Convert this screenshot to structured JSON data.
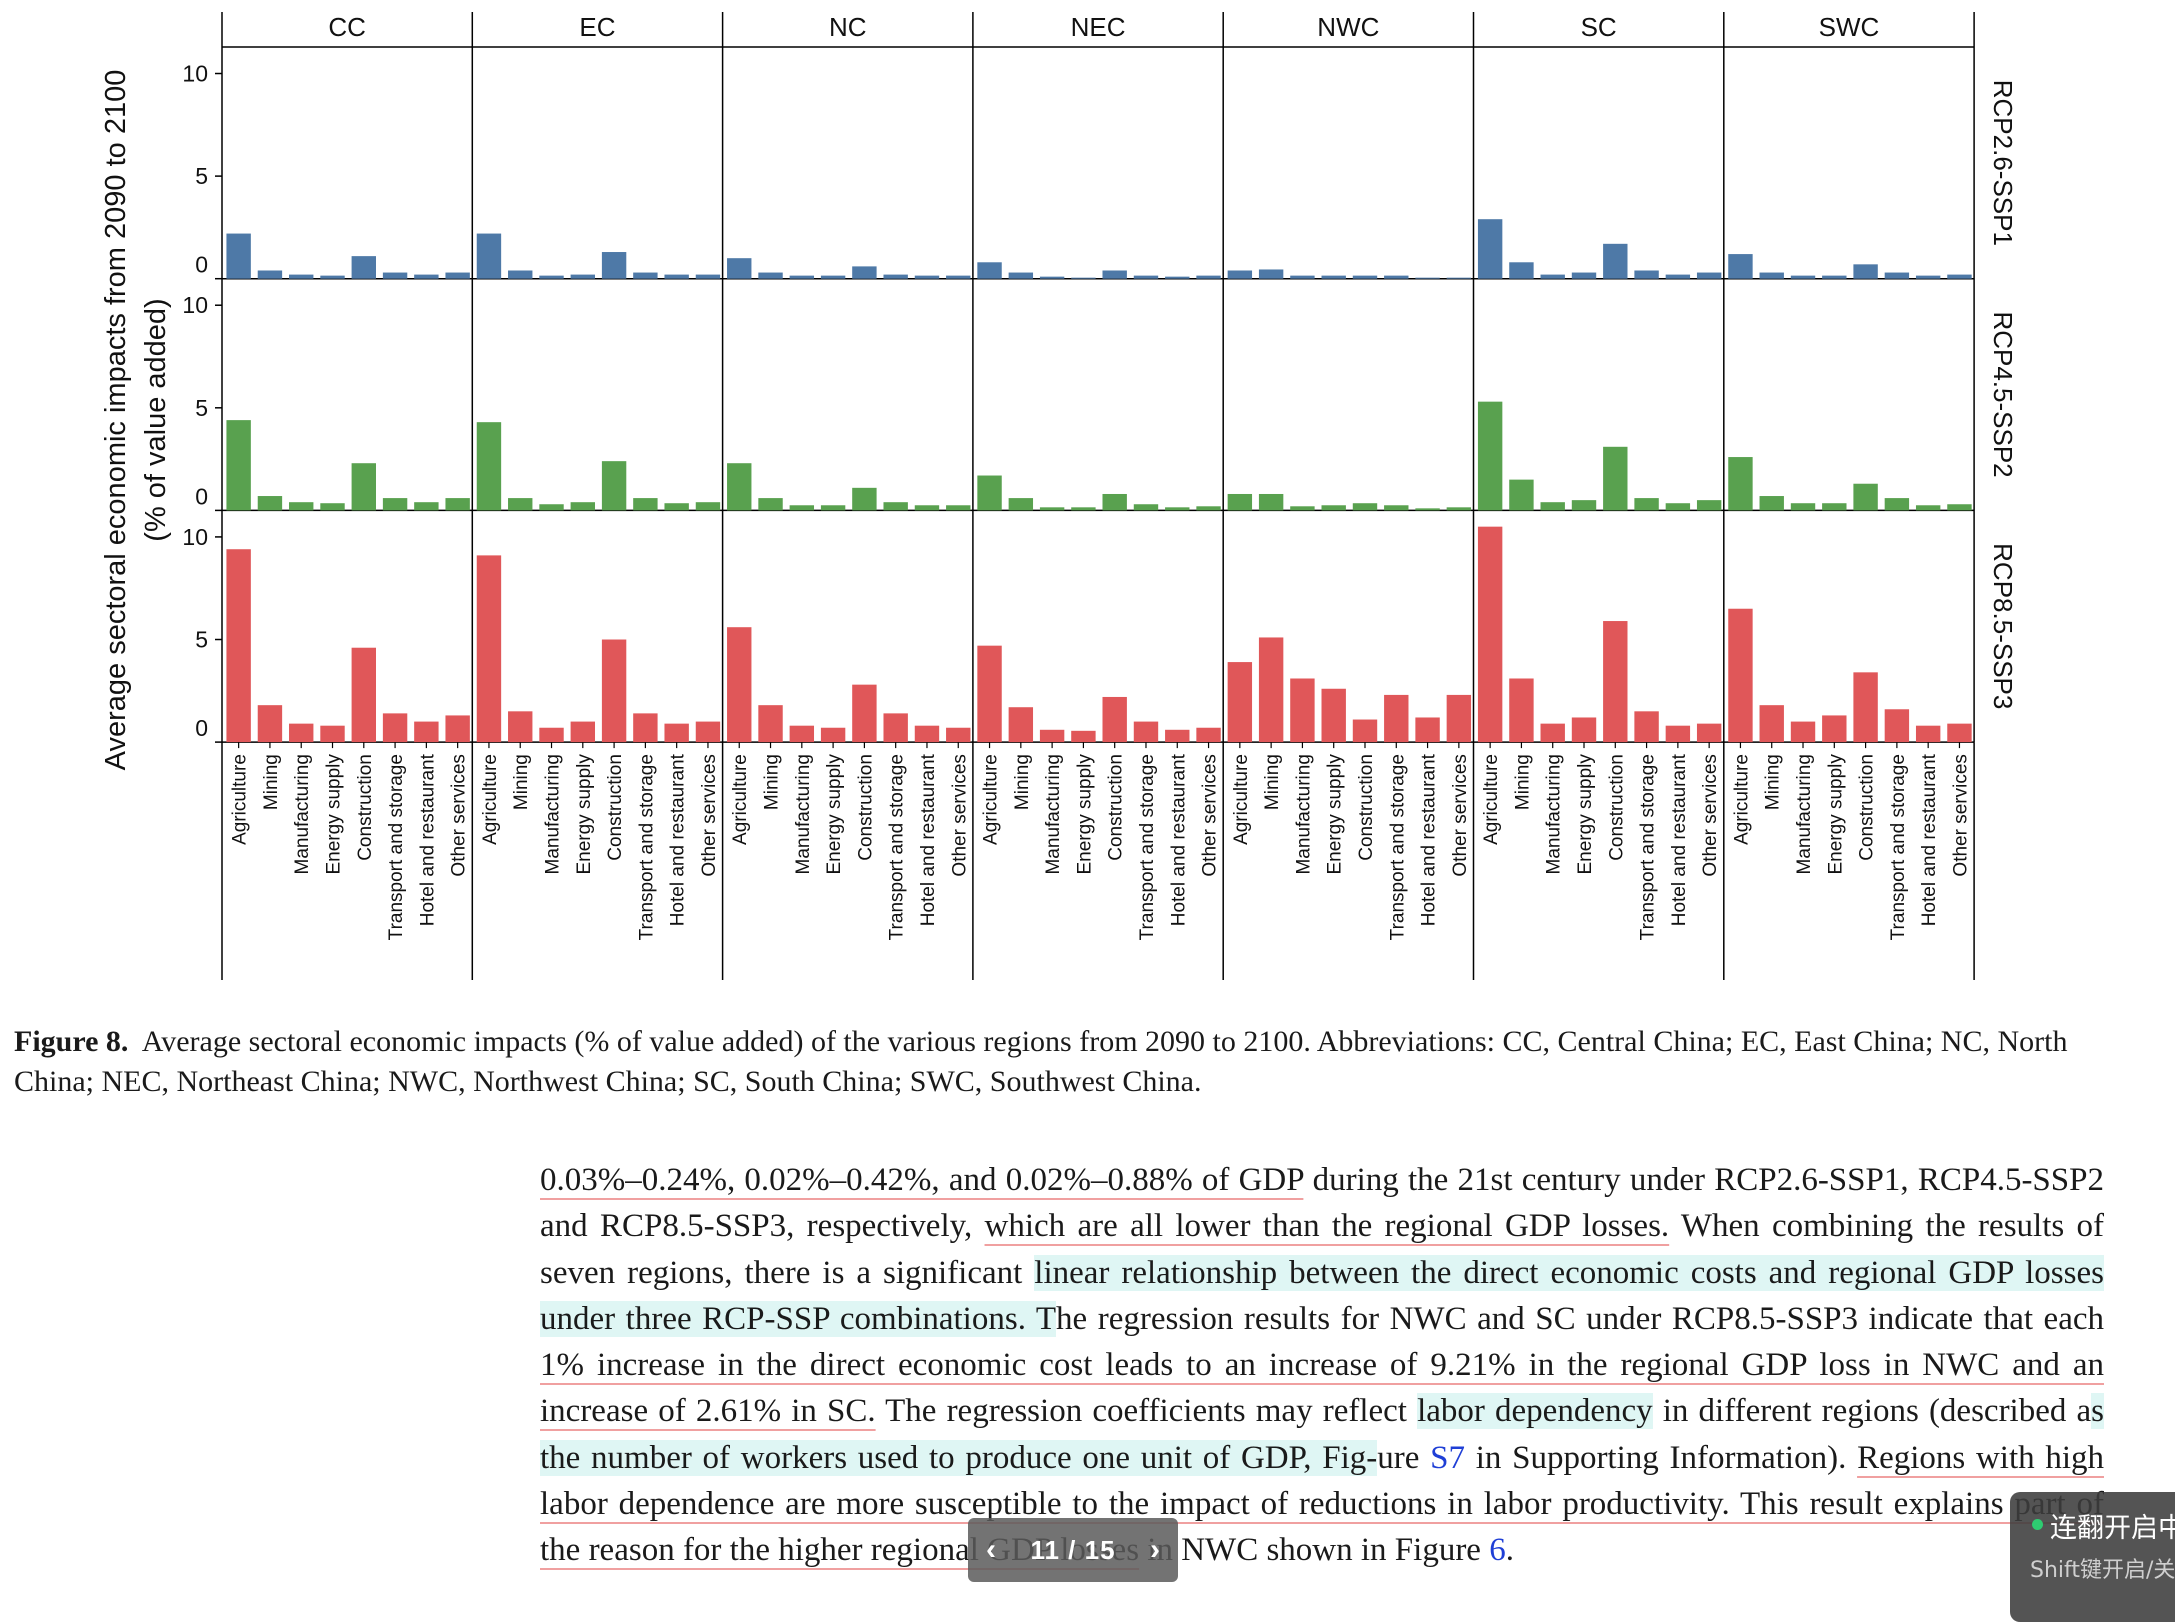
{
  "chart_data": {
    "type": "bar",
    "ylabel_line1": "Average sectoral economic impacts from 2090 to 2100",
    "ylabel_line2": "(% of value added)",
    "ylim": [
      0,
      11
    ],
    "yticks": [
      0,
      5,
      10
    ],
    "regions": [
      "CC",
      "EC",
      "NC",
      "NEC",
      "NWC",
      "SC",
      "SWC"
    ],
    "categories": [
      "Agriculture",
      "Mining",
      "Manufacturing",
      "Energy supply",
      "Construction",
      "Transport and storage",
      "Hotel and restaurant",
      "Other services"
    ],
    "scenarios": [
      {
        "name": "RCP2.6-SSP1",
        "color": "#4e79a7",
        "values": {
          "CC": [
            2.2,
            0.4,
            0.2,
            0.15,
            1.1,
            0.3,
            0.2,
            0.3
          ],
          "EC": [
            2.2,
            0.4,
            0.15,
            0.2,
            1.3,
            0.3,
            0.2,
            0.2
          ],
          "NC": [
            1.0,
            0.3,
            0.15,
            0.15,
            0.6,
            0.2,
            0.15,
            0.15
          ],
          "NEC": [
            0.8,
            0.3,
            0.1,
            0.05,
            0.4,
            0.15,
            0.1,
            0.15
          ],
          "NWC": [
            0.4,
            0.45,
            0.15,
            0.15,
            0.15,
            0.15,
            0.05,
            0.05
          ],
          "SC": [
            2.9,
            0.8,
            0.2,
            0.3,
            1.7,
            0.4,
            0.2,
            0.3
          ],
          "SWC": [
            1.2,
            0.3,
            0.15,
            0.15,
            0.7,
            0.3,
            0.15,
            0.2
          ]
        }
      },
      {
        "name": "RCP4.5-SSP2",
        "color": "#59a14f",
        "values": {
          "CC": [
            4.4,
            0.7,
            0.4,
            0.35,
            2.3,
            0.6,
            0.4,
            0.6
          ],
          "EC": [
            4.3,
            0.6,
            0.3,
            0.4,
            2.4,
            0.6,
            0.35,
            0.4
          ],
          "NC": [
            2.3,
            0.6,
            0.25,
            0.25,
            1.1,
            0.4,
            0.25,
            0.25
          ],
          "NEC": [
            1.7,
            0.6,
            0.15,
            0.15,
            0.8,
            0.3,
            0.15,
            0.2
          ],
          "NWC": [
            0.8,
            0.8,
            0.2,
            0.25,
            0.35,
            0.25,
            0.1,
            0.15
          ],
          "SC": [
            5.3,
            1.5,
            0.4,
            0.5,
            3.1,
            0.6,
            0.35,
            0.5
          ],
          "SWC": [
            2.6,
            0.7,
            0.35,
            0.35,
            1.3,
            0.6,
            0.25,
            0.3
          ]
        }
      },
      {
        "name": "RCP8.5-SSP3",
        "color": "#e05759",
        "values": {
          "CC": [
            9.4,
            1.8,
            0.9,
            0.8,
            4.6,
            1.4,
            1.0,
            1.3
          ],
          "EC": [
            9.1,
            1.5,
            0.7,
            1.0,
            5.0,
            1.4,
            0.9,
            1.0
          ],
          "NC": [
            5.6,
            1.8,
            0.8,
            0.7,
            2.8,
            1.4,
            0.8,
            0.7
          ],
          "NEC": [
            4.7,
            1.7,
            0.6,
            0.55,
            2.2,
            1.0,
            0.6,
            0.7
          ],
          "NWC": [
            3.9,
            5.1,
            3.1,
            2.6,
            1.1,
            2.3,
            1.2,
            2.3
          ],
          "SC": [
            10.5,
            3.1,
            0.9,
            1.2,
            5.9,
            1.5,
            0.8,
            0.9
          ],
          "SWC": [
            6.5,
            1.8,
            1.0,
            1.3,
            3.4,
            1.6,
            0.8,
            0.9
          ]
        }
      }
    ],
    "grid": false
  },
  "caption": {
    "label": "Figure 8.",
    "text": "Average sectoral economic impacts (% of value added) of the various regions from 2090 to 2100. Abbreviations: CC, Central China; EC, East China; NC, North China; NEC, Northeast China; NWC, Northwest China; SC, South China; SWC, Southwest China."
  },
  "body": {
    "s1": "0.03%–0.24%, 0.02%–0.42%, and 0.02%–0.88% of GDP",
    "s2": " during the 21st century under RCP2.6-SSP1, RCP4.5-SSP2 and RCP8.5-SSP3, respectively, ",
    "s3": "which are all lower than the regional GDP losses.",
    "s4": " When combining the results of seven regions, there is a significant ",
    "s5": "linear relationship between the direct economic costs and regional GDP losses under three RCP-SSP combinations. T",
    "s6": "he regression results for NWC and SC under RCP8.5-SSP3 indicate that each ",
    "s7": "1% increase in the direct economic cost leads to an increase of 9.21% in the regional GDP loss in NWC and an increase of 2.61% in SC.",
    "s8": " The regression coefficients may reflect ",
    "s9": "labor dependency",
    "s10": " in different regions (described a",
    "s11": "s the number of workers used to produce one unit of GDP, Fig-",
    "s12": "ure ",
    "ref_s7": "S7",
    "s13": " in Supporting Information). ",
    "s14": "Regions with high labor dependence are more susceptible to the impact of reductions in labor productivity. This result explains part of the reason for the higher regional GDP losses",
    "s15": " in NWC shown in Figure ",
    "ref_6": "6",
    "s16": "."
  },
  "pager": {
    "prev": "‹",
    "current": "11 / 15",
    "next": "›"
  },
  "widget": {
    "title": "连翻开启中",
    "hint": "Shift键开启/关闭"
  }
}
